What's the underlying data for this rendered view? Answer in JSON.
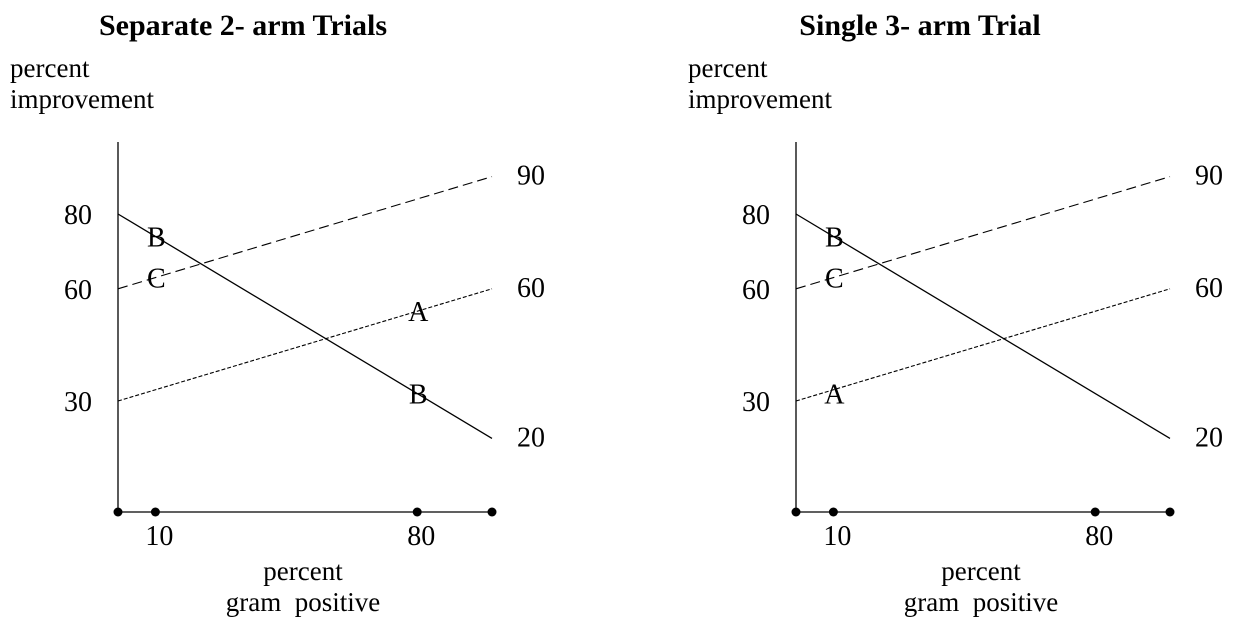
{
  "chart_data": [
    {
      "type": "line",
      "title": "Separate 2- arm Trials",
      "ylabel": [
        "percent",
        "improvement"
      ],
      "xlabel": [
        "percent",
        "gram  positive"
      ],
      "x_ticks": [
        {
          "value": 0,
          "label": ""
        },
        {
          "value": 10,
          "label": "10"
        },
        {
          "value": 80,
          "label": "80"
        },
        {
          "value": 100,
          "label": ""
        }
      ],
      "y_ticks_left": [
        {
          "value": 30,
          "label": "30"
        },
        {
          "value": 60,
          "label": "60"
        },
        {
          "value": 80,
          "label": "80"
        }
      ],
      "y_labels_right": [
        {
          "value": 90,
          "label": "90"
        },
        {
          "value": 60,
          "label": "60"
        },
        {
          "value": 20,
          "label": "20"
        }
      ],
      "xlim": [
        0,
        100
      ],
      "ylim": [
        0,
        100
      ],
      "series": [
        {
          "key": "B",
          "style": "solid",
          "x": [
            0,
            100
          ],
          "y": [
            80,
            20
          ]
        },
        {
          "key": "C",
          "style": "dashed",
          "x": [
            0,
            100
          ],
          "y": [
            60,
            90
          ]
        },
        {
          "key": "A",
          "style": "dotted",
          "x": [
            0,
            100
          ],
          "y": [
            30,
            60
          ]
        }
      ],
      "point_labels": [
        {
          "text": "B",
          "x": 10,
          "y": 74
        },
        {
          "text": "C",
          "x": 10,
          "y": 63
        },
        {
          "text": "A",
          "x": 80,
          "y": 54
        },
        {
          "text": "B",
          "x": 80,
          "y": 32
        }
      ]
    },
    {
      "type": "line",
      "title": "Single 3- arm Trial",
      "ylabel": [
        "percent",
        "improvement"
      ],
      "xlabel": [
        "percent",
        "gram  positive"
      ],
      "x_ticks": [
        {
          "value": 0,
          "label": ""
        },
        {
          "value": 10,
          "label": "10"
        },
        {
          "value": 80,
          "label": "80"
        },
        {
          "value": 100,
          "label": ""
        }
      ],
      "y_ticks_left": [
        {
          "value": 30,
          "label": "30"
        },
        {
          "value": 60,
          "label": "60"
        },
        {
          "value": 80,
          "label": "80"
        }
      ],
      "y_labels_right": [
        {
          "value": 90,
          "label": "90"
        },
        {
          "value": 60,
          "label": "60"
        },
        {
          "value": 20,
          "label": "20"
        }
      ],
      "xlim": [
        0,
        100
      ],
      "ylim": [
        0,
        100
      ],
      "series": [
        {
          "key": "B",
          "style": "solid",
          "x": [
            0,
            100
          ],
          "y": [
            80,
            20
          ]
        },
        {
          "key": "C",
          "style": "dashed",
          "x": [
            0,
            100
          ],
          "y": [
            60,
            90
          ]
        },
        {
          "key": "A",
          "style": "dotted",
          "x": [
            0,
            100
          ],
          "y": [
            30,
            60
          ]
        }
      ],
      "point_labels": [
        {
          "text": "B",
          "x": 10,
          "y": 74
        },
        {
          "text": "C",
          "x": 10,
          "y": 63
        },
        {
          "text": "A",
          "x": 10,
          "y": 32
        }
      ]
    }
  ]
}
